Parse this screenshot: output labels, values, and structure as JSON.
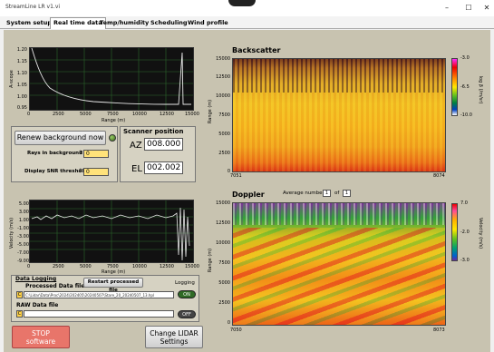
{
  "window": {
    "title": "StreamLine LR v1.vi",
    "minimize": "–",
    "maximize": "☐",
    "close": "✕"
  },
  "tabs": [
    {
      "label": "System setup"
    },
    {
      "label": "Real time data"
    },
    {
      "label": "Temp/humidity"
    },
    {
      "label": "Scheduling"
    },
    {
      "label": "Wind profile"
    }
  ],
  "ascope": {
    "ylabel": "A-scope",
    "xlabel": "Range (m)",
    "yticks": [
      "1.20",
      "1.15",
      "1.10",
      "1.05",
      "1.00",
      "0.95"
    ],
    "xticks": [
      "0",
      "2500",
      "5000",
      "7500",
      "10000",
      "12500",
      "15000"
    ]
  },
  "controls": {
    "renew_label": "Renew background now",
    "rays_label": "Rays in background",
    "rays_value": "0",
    "snr_label": "Display SNR threshold",
    "snr_value": "0"
  },
  "scanner": {
    "title": "Scanner position",
    "az_label": "AZ",
    "az_value": "008.000",
    "el_label": "EL",
    "el_value": "002.002"
  },
  "velocity": {
    "ylabel": "Velocity (m/s)",
    "xlabel": "Range (m)",
    "yticks": [
      "5.00",
      "3.00",
      "1.00",
      "-1.00",
      "-3.00",
      "-5.00",
      "-7.00",
      "-9.00"
    ],
    "xticks": [
      "0",
      "2500",
      "5000",
      "7500",
      "10000",
      "12500",
      "15000"
    ]
  },
  "logging": {
    "title": "Data Logging",
    "processed_label": "Processed Data file",
    "restart_label": "Restart processed file",
    "logging_label": "Logging",
    "path_value": "C:\\Lidar\\Data\\Proc\\2024\\202405\\20240507\\Stare_20_20240507_13.hpl",
    "on_label": "ON",
    "raw_label": "RAW Data file",
    "off_label": "OFF"
  },
  "bottom_buttons": {
    "stop_line1": "STOP",
    "stop_line2": "software",
    "change_line1": "Change LIDAR",
    "change_line2": "Settings"
  },
  "backscatter": {
    "title": "Backscatter",
    "ylabel": "Range (m)",
    "yticks": [
      "15000",
      "12500",
      "10000",
      "7500",
      "5000",
      "2500",
      "0"
    ],
    "x_start": "7051",
    "x_end": "8074",
    "scale_label": "log β (/m/sr)",
    "scale_ticks": [
      "-3.0",
      "-6.5",
      "-10.0"
    ]
  },
  "doppler": {
    "title": "Doppler",
    "avg_label": "Average number",
    "avg_value": "1",
    "of_label": "of",
    "of_value": "1",
    "ylabel": "Range (m)",
    "yticks": [
      "15000",
      "12500",
      "10000",
      "7500",
      "5000",
      "2500",
      "0"
    ],
    "x_start": "7050",
    "x_end": "8073",
    "scale_label": "Velocity (m/s)",
    "scale_ticks": [
      "7.0",
      "-2.0",
      "-3.0"
    ]
  },
  "colors": {
    "panel": "#c8c3b0",
    "plot_bg": "#111111",
    "trace": "#e8e8e8",
    "stop_button": "#e8756a"
  }
}
